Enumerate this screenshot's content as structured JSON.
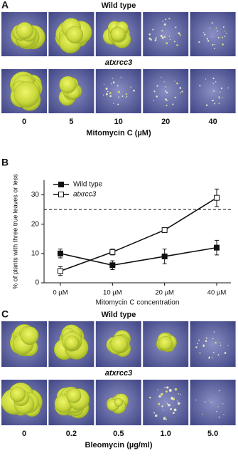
{
  "panel_a": {
    "label": "A",
    "row1_title": "Wild type",
    "row2_title": "atxrcc3",
    "doses": [
      "0",
      "5",
      "10",
      "20",
      "40"
    ],
    "axis_title": "Mitomycin C (µM)"
  },
  "chart_data": {
    "type": "line",
    "panel_label": "B",
    "y_label": "% of plants with three true leaves or less",
    "x_label": "Mitomycin C concentration",
    "categories": [
      "0 µM",
      "10 µM",
      "20 µM",
      "40 µM"
    ],
    "series": [
      {
        "name": "Wild type",
        "color": "#111111",
        "marker": "filled",
        "values": [
          10,
          6,
          9,
          12
        ],
        "errors": [
          1.5,
          1.5,
          2.5,
          2.5
        ]
      },
      {
        "name": "atxrcc3",
        "color": "#111111",
        "marker": "open",
        "values": [
          4,
          10.5,
          18,
          29
        ],
        "errors": [
          1.5,
          1,
          0.5,
          3
        ]
      }
    ],
    "ylim": [
      0,
      35
    ],
    "yticks": [
      0,
      10,
      20,
      30
    ],
    "hline": 25,
    "legend": "upper-left"
  },
  "panel_c": {
    "label": "C",
    "row1_title": "Wild type",
    "row2_title": "atxrcc3",
    "doses": [
      "0",
      "0.2",
      "0.5",
      "1.0",
      "5.0"
    ],
    "axis_title": "Bleomycin (µg/ml)"
  }
}
